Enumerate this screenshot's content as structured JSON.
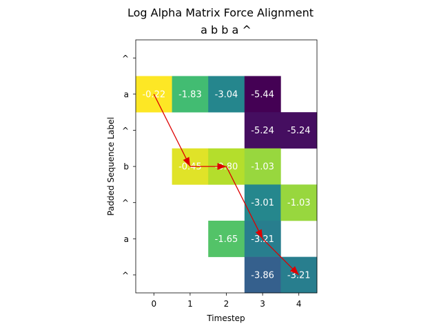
{
  "chart_data": {
    "type": "heatmap",
    "title": "Log Alpha Matrix Force Alignment",
    "subtitle": "a b b a ^",
    "xlabel": "Timestep",
    "ylabel": "Padded Sequence Label",
    "x_ticks": [
      "0",
      "1",
      "2",
      "3",
      "4"
    ],
    "y_ticks": [
      "^",
      "a",
      "^",
      "b",
      "^",
      "a",
      "^"
    ],
    "value_range": [
      -5.44,
      -0.22
    ],
    "colormap": "viridis",
    "cells": [
      {
        "row": 1,
        "col": 0,
        "value": -0.22,
        "label": "-0.22"
      },
      {
        "row": 1,
        "col": 1,
        "value": -1.83,
        "label": "-1.83"
      },
      {
        "row": 1,
        "col": 2,
        "value": -3.04,
        "label": "-3.04"
      },
      {
        "row": 1,
        "col": 3,
        "value": -5.44,
        "label": "-5.44"
      },
      {
        "row": 2,
        "col": 3,
        "value": -5.24,
        "label": "-5.24"
      },
      {
        "row": 2,
        "col": 4,
        "value": -5.24,
        "label": "-5.24"
      },
      {
        "row": 3,
        "col": 1,
        "value": -0.45,
        "label": "-0.45"
      },
      {
        "row": 3,
        "col": 2,
        "value": -0.8,
        "label": "-0.80"
      },
      {
        "row": 3,
        "col": 3,
        "value": -1.03,
        "label": "-1.03"
      },
      {
        "row": 4,
        "col": 3,
        "value": -3.01,
        "label": "-3.01"
      },
      {
        "row": 4,
        "col": 4,
        "value": -1.03,
        "label": "-1.03"
      },
      {
        "row": 5,
        "col": 2,
        "value": -1.65,
        "label": "-1.65"
      },
      {
        "row": 5,
        "col": 3,
        "value": -3.21,
        "label": "-3.21"
      },
      {
        "row": 6,
        "col": 3,
        "value": -3.86,
        "label": "-3.86"
      },
      {
        "row": 6,
        "col": 4,
        "value": -3.21,
        "label": "-3.21"
      }
    ],
    "alignment_path": [
      {
        "row": 1,
        "col": 0
      },
      {
        "row": 3,
        "col": 1
      },
      {
        "row": 3,
        "col": 2
      },
      {
        "row": 5,
        "col": 3
      },
      {
        "row": 6,
        "col": 4
      }
    ],
    "path_color": "#dd0000",
    "cell_text_color": "#ffffff"
  }
}
